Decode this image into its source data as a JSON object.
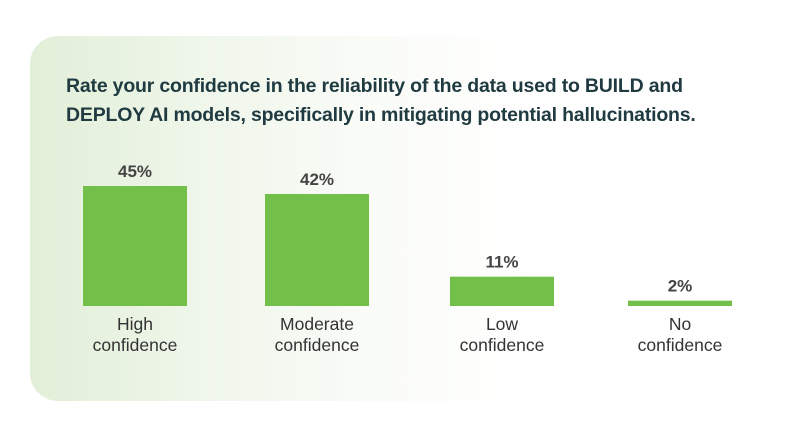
{
  "title": {
    "line1": "Rate your confidence in the reliability of the data used to BUILD and",
    "line2": "DEPLOY AI models, specifically in mitigating potential hallucinations."
  },
  "chart_data": {
    "type": "bar",
    "categories": [
      {
        "line1": "High",
        "line2": "confidence"
      },
      {
        "line1": "Moderate",
        "line2": "confidence"
      },
      {
        "line1": "Low",
        "line2": "confidence"
      },
      {
        "line1": "No",
        "line2": "confidence"
      }
    ],
    "values": [
      45,
      42,
      11,
      2
    ],
    "value_labels": [
      "45%",
      "42%",
      "11%",
      "2%"
    ],
    "ylim": [
      0,
      45
    ],
    "grid": false,
    "legend": "none",
    "bar_color": "#72c04a",
    "label_color": "#444444"
  }
}
